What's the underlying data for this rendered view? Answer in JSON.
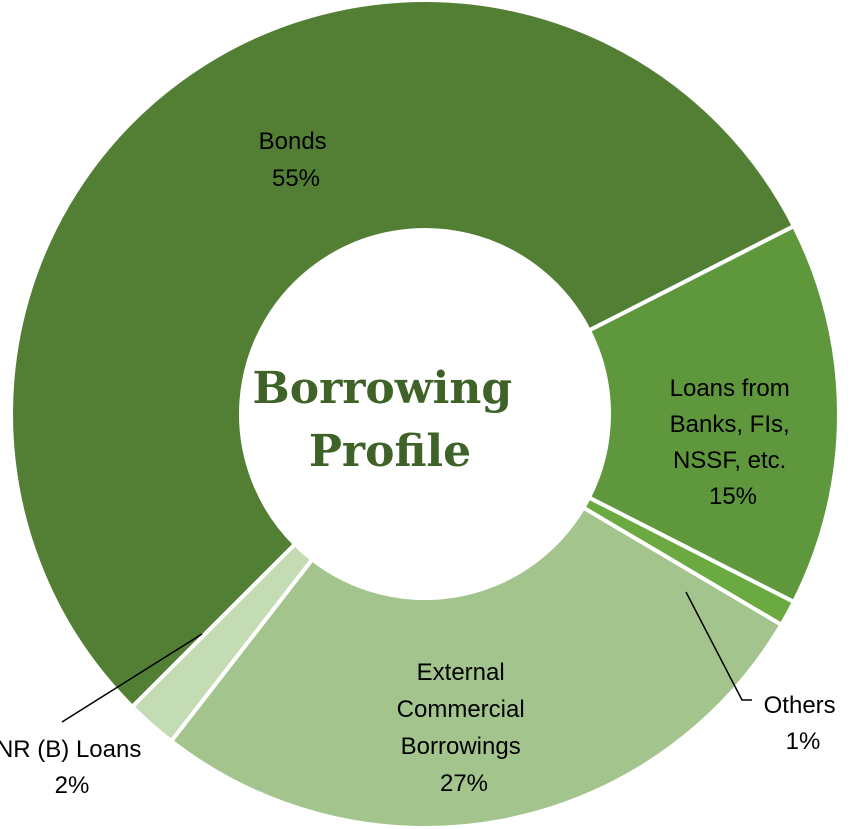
{
  "chart_data": {
    "type": "pie",
    "donut": true,
    "title_lines": [
      "Borrowing",
      "Profile"
    ],
    "title_color": "#3f6228",
    "slices": [
      {
        "name": "Loans from Banks, FIs, NSSF, etc.",
        "value": 15,
        "label_lines": [
          "Loans from",
          "Banks, FIs,",
          "NSSF, etc."
        ],
        "percent_label": "15%",
        "color": "#5e973c"
      },
      {
        "name": "Others",
        "value": 1,
        "label_lines": [
          "Others"
        ],
        "percent_label": "1%",
        "color": "#6aaa40"
      },
      {
        "name": "External Commercial Borrowings",
        "value": 27,
        "label_lines": [
          "External",
          "Commercial",
          "Borrowings"
        ],
        "percent_label": "27%",
        "color": "#a3c58d"
      },
      {
        "name": "NR (B) Loans",
        "value": 2,
        "label_lines": [
          "NR (B) Loans"
        ],
        "percent_label": "2%",
        "color": "#c4dcb3"
      },
      {
        "name": "Bonds",
        "value": 55,
        "label_lines": [
          "Bonds"
        ],
        "percent_label": "55%",
        "color": "#537f35"
      }
    ]
  }
}
